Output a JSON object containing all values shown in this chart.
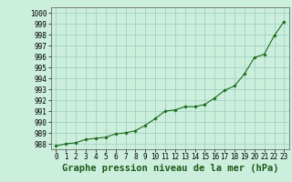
{
  "hours": [
    0,
    1,
    2,
    3,
    4,
    5,
    6,
    7,
    8,
    9,
    10,
    11,
    12,
    13,
    14,
    15,
    16,
    17,
    18,
    19,
    20,
    21,
    22,
    23
  ],
  "pressure": [
    987.8,
    988.0,
    988.1,
    988.4,
    988.5,
    988.6,
    988.9,
    989.0,
    989.2,
    989.7,
    990.3,
    991.0,
    991.1,
    991.4,
    991.4,
    991.6,
    992.2,
    992.9,
    993.3,
    994.4,
    995.9,
    996.2,
    997.9,
    999.2
  ],
  "ylim": [
    987.5,
    1000.5
  ],
  "yticks": [
    988,
    989,
    990,
    991,
    992,
    993,
    994,
    995,
    996,
    997,
    998,
    999,
    1000
  ],
  "xticks": [
    0,
    1,
    2,
    3,
    4,
    5,
    6,
    7,
    8,
    9,
    10,
    11,
    12,
    13,
    14,
    15,
    16,
    17,
    18,
    19,
    20,
    21,
    22,
    23
  ],
  "xlabel": "Graphe pression niveau de la mer (hPa)",
  "line_color": "#1a6b1a",
  "marker_color": "#1a6b1a",
  "bg_color": "#cceedd",
  "grid_color": "#99ccbb",
  "tick_label_fontsize": 5.5,
  "xlabel_fontsize": 7.5
}
